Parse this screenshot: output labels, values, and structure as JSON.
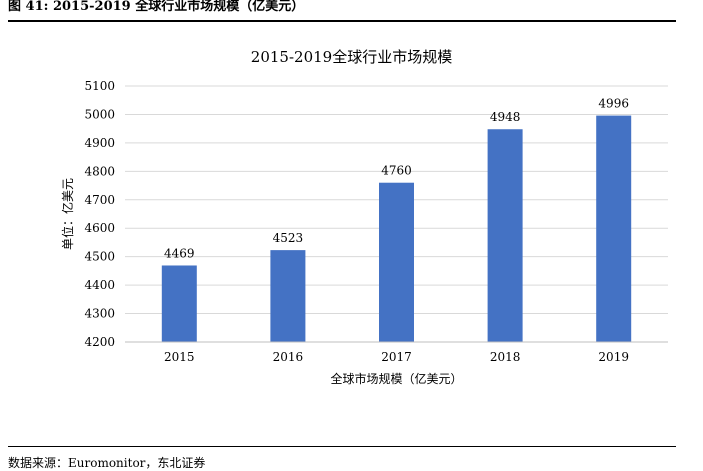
{
  "figure": {
    "label": "图 41:",
    "title": "2015-2019 全球行业市场规模（亿美元）"
  },
  "source": "数据来源：Euromonitor，东北证券",
  "chart_data": {
    "type": "bar",
    "title": "2015-2019全球行业市场规模",
    "categories": [
      "2015",
      "2016",
      "2017",
      "2018",
      "2019"
    ],
    "values": [
      4469,
      4523,
      4760,
      4948,
      4996
    ],
    "xlabel": "全球市场规模（亿美元）",
    "ylabel": "单位：亿美元",
    "ylim": [
      4200,
      5100
    ],
    "yticks": [
      4200,
      4300,
      4400,
      4500,
      4600,
      4700,
      4800,
      4900,
      5000,
      5100
    ],
    "grid": true,
    "legend": "none",
    "bar_color": "#4472C4",
    "grid_color": "#D9D9D9"
  }
}
